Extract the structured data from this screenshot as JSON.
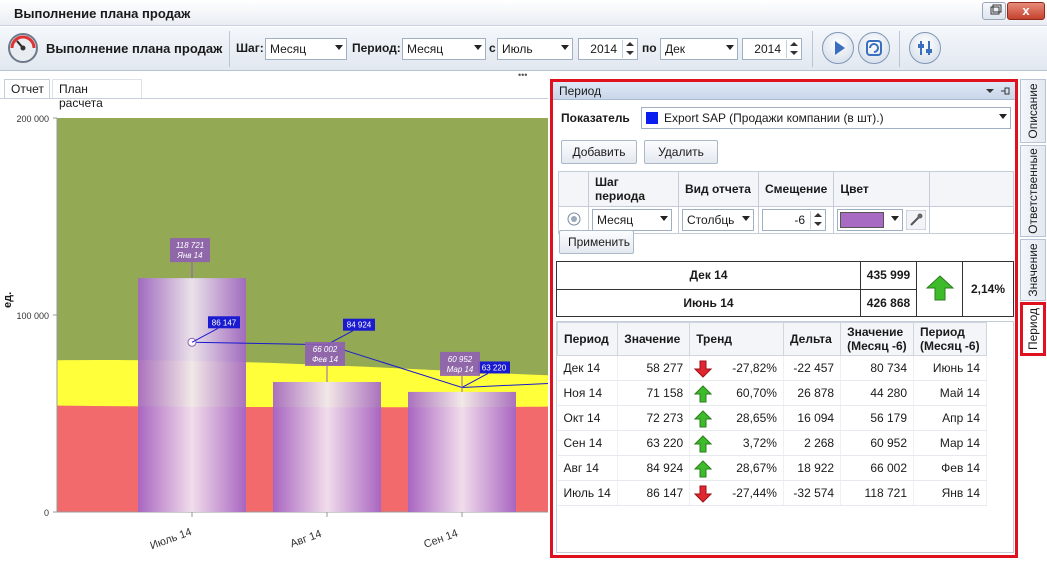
{
  "window": {
    "title": "Выполнение плана продаж",
    "close": "x"
  },
  "toolbar": {
    "title": "Выполнение плана продаж",
    "step_label": "Шаг:",
    "step_value": "Месяц",
    "period_label": "Период:",
    "period_value": "Месяц",
    "from_label": "с",
    "from_month": "Июль",
    "from_year": "2014",
    "to_label": "по",
    "to_month": "Дек",
    "to_year": "2014",
    "buttons": [
      "play-icon",
      "refresh-icon",
      "settings-icon"
    ]
  },
  "tabs": {
    "report": "Отчет",
    "plan": "План расчета",
    "grip": "•••"
  },
  "chart_data": {
    "type": "bar",
    "ylabel": "ед.",
    "ylim": [
      0,
      200000
    ],
    "yticks": [
      "200 000",
      "100 000",
      "0"
    ],
    "categories": [
      "Июль 14",
      "Авг 14",
      "Сен 14"
    ],
    "series": [
      {
        "values": [
          86147,
          84924,
          63220
        ]
      },
      {
        "values": [
          118721,
          66002,
          60952
        ]
      }
    ],
    "bar_labels": [
      {
        "value": "118 721",
        "period": "Янв 14"
      },
      {
        "value": "66 002",
        "period": "Фев 14"
      },
      {
        "value": "60 952",
        "period": "Мар 14"
      }
    ],
    "line_labels": [
      "86 147",
      "84 924",
      "63 220"
    ],
    "bands": {
      "red_top": 54000,
      "yellow_top": 77000,
      "green_top": 200000
    },
    "colors": {
      "bars": "#a86bc4",
      "line": "#1a1ad0",
      "red": "#f26a6b",
      "yellow": "#ffff3a",
      "green": "#93a954"
    }
  },
  "panel": {
    "title": "Период",
    "indicator_label": "Показатель",
    "indicator_value": "Export SAP (Продажи компании (в шт).)",
    "indicator_color": "#0a1ef0",
    "add": "Добавить",
    "delete": "Удалить",
    "config": {
      "headers": [
        "Шаг периода",
        "Вид отчета",
        "Смещение",
        "Цвет"
      ],
      "step": "Месяц",
      "view": "Столбць",
      "offset": "-6",
      "color": "#a86bc4"
    },
    "apply": "Применить",
    "compare": {
      "row1_period": "Дек 14",
      "row1_value": "435 999",
      "row2_period": "Июнь 14",
      "row2_value": "426 868",
      "pct": "2,14%"
    },
    "table": {
      "headers": [
        "Период",
        "Значение",
        "Тренд",
        "Дельта",
        "Значение (Месяц -6)",
        "Период (Месяц -6)"
      ],
      "rows": [
        {
          "period": "Дек 14",
          "value": "58 277",
          "trend": "down",
          "pct": "-27,82%",
          "delta": "-22 457",
          "prev_value": "80 734",
          "prev_period": "Июнь 14"
        },
        {
          "period": "Ноя 14",
          "value": "71 158",
          "trend": "up",
          "pct": "60,70%",
          "delta": "26 878",
          "prev_value": "44 280",
          "prev_period": "Май 14"
        },
        {
          "period": "Окт 14",
          "value": "72 273",
          "trend": "up",
          "pct": "28,65%",
          "delta": "16 094",
          "prev_value": "56 179",
          "prev_period": "Апр 14"
        },
        {
          "period": "Сен 14",
          "value": "63 220",
          "trend": "up",
          "pct": "3,72%",
          "delta": "2 268",
          "prev_value": "60 952",
          "prev_period": "Мар 14"
        },
        {
          "period": "Авг 14",
          "value": "84 924",
          "trend": "up",
          "pct": "28,67%",
          "delta": "18 922",
          "prev_value": "66 002",
          "prev_period": "Фев 14"
        },
        {
          "period": "Июль 14",
          "value": "86 147",
          "trend": "down",
          "pct": "-27,44%",
          "delta": "-32 574",
          "prev_value": "118 721",
          "prev_period": "Янв 14"
        }
      ]
    }
  },
  "side_tabs": [
    "Описание",
    "Ответственные",
    "Значение",
    "Период"
  ]
}
